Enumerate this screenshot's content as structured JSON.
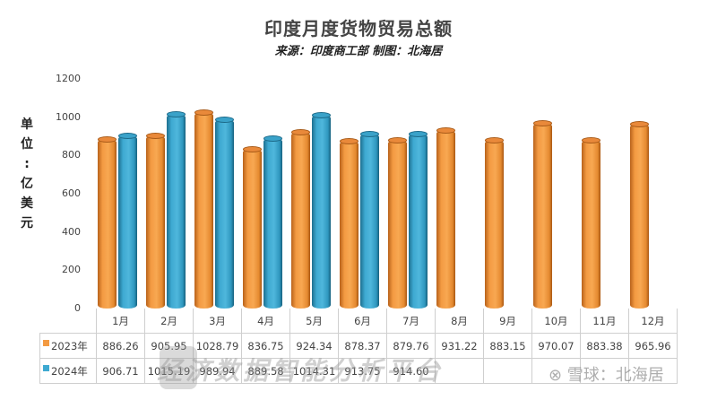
{
  "header": {
    "title": "印度月度货物贸易总额",
    "subtitle": "来源：印度商工部 制图：北海居"
  },
  "yaxis": {
    "label_chars": [
      "单",
      "位",
      ":",
      "亿",
      "美",
      "元"
    ],
    "ticks": [
      "1200",
      "1000",
      "800",
      "600",
      "400",
      "200",
      "0"
    ]
  },
  "table": {
    "months": [
      "1月",
      "2月",
      "3月",
      "4月",
      "5月",
      "6月",
      "7月",
      "8月",
      "9月",
      "10月",
      "11月",
      "12月"
    ],
    "rows": [
      {
        "label": "2023年",
        "color": "#f39a42",
        "values": [
          "886.26",
          "905.95",
          "1028.79",
          "836.75",
          "924.34",
          "878.37",
          "879.76",
          "931.22",
          "883.15",
          "970.07",
          "883.38",
          "965.96"
        ]
      },
      {
        "label": "2024年",
        "color": "#3ea9d1",
        "values": [
          "906.71",
          "1015.19",
          "989.94",
          "889.58",
          "1014.31",
          "913.75",
          "914.60",
          "",
          "",
          "",
          "",
          ""
        ]
      }
    ]
  },
  "watermark": {
    "text": "经济数据智能分析平台",
    "credit": "⊗ 雪球：北海居"
  },
  "chart_data": {
    "type": "bar",
    "title": "印度月度货物贸易总额",
    "subtitle": "来源：印度商工部 制图：北海居",
    "xlabel": "",
    "ylabel": "单位：亿美元",
    "ylim": [
      0,
      1200
    ],
    "yticks": [
      0,
      200,
      400,
      600,
      800,
      1000,
      1200
    ],
    "grid": false,
    "legend_position": "data-table-left",
    "categories": [
      "1月",
      "2月",
      "3月",
      "4月",
      "5月",
      "6月",
      "7月",
      "8月",
      "9月",
      "10月",
      "11月",
      "12月"
    ],
    "series": [
      {
        "name": "2023年",
        "color": "#f39a42",
        "values": [
          886.26,
          905.95,
          1028.79,
          836.75,
          924.34,
          878.37,
          879.76,
          931.22,
          883.15,
          970.07,
          883.38,
          965.96
        ]
      },
      {
        "name": "2024年",
        "color": "#3ea9d1",
        "values": [
          906.71,
          1015.19,
          989.94,
          889.58,
          1014.31,
          913.75,
          914.6,
          null,
          null,
          null,
          null,
          null
        ]
      }
    ]
  }
}
